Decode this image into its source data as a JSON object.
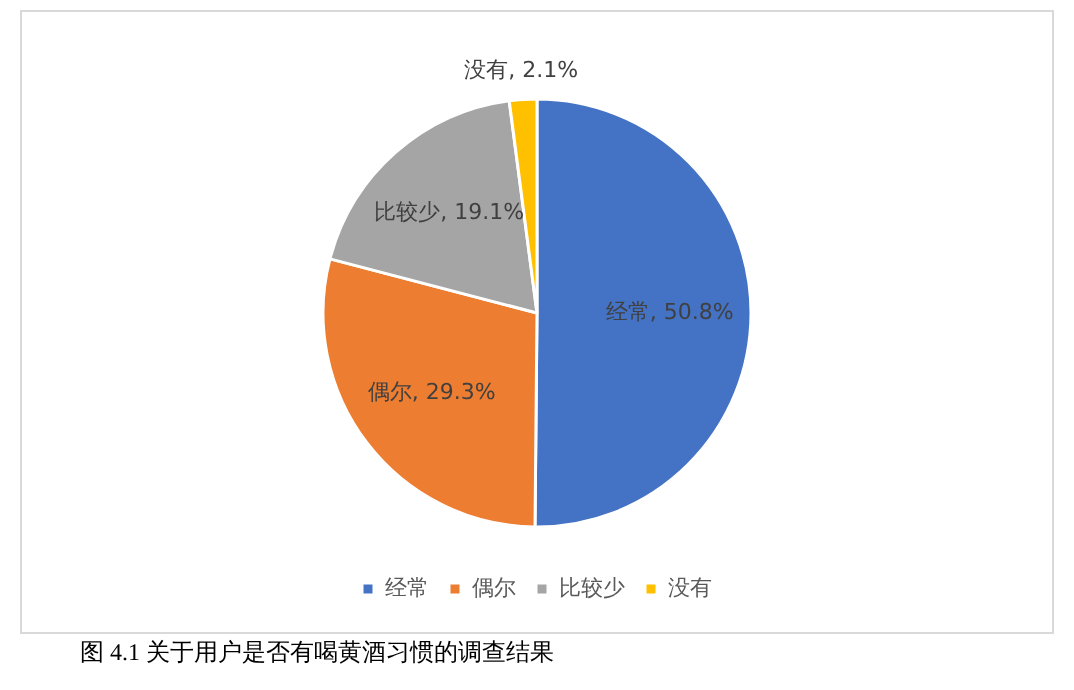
{
  "chart_data": {
    "type": "pie",
    "categories": [
      "经常",
      "偶尔",
      "比较少",
      "没有"
    ],
    "values": [
      50.8,
      29.3,
      19.1,
      2.1
    ],
    "value_labels": [
      "经常, 50.8%",
      "偶尔, 29.3%",
      "比较少, 19.1%",
      "没有, 2.1%"
    ],
    "colors": [
      "#4472c4",
      "#ed7d31",
      "#a5a5a5",
      "#ffc000"
    ],
    "legend": "bottom",
    "annotations": [
      "图 4.1 关于用户是否有喝黄酒习惯的调查结果"
    ]
  }
}
